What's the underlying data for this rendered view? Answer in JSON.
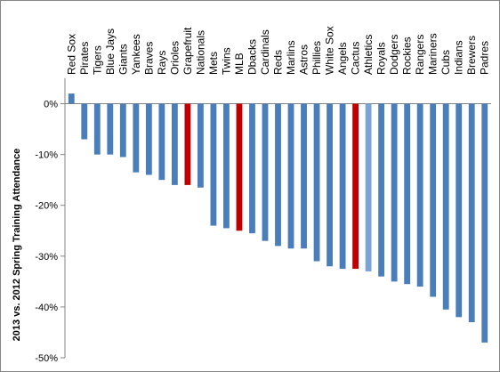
{
  "chart_data": {
    "type": "bar",
    "title": "",
    "xlabel": "",
    "ylabel": "2013 vs. 2012 Spring Training Attendance",
    "ylim": [
      -50,
      5
    ],
    "yticks": [
      0,
      -10,
      -20,
      -30,
      -40,
      -50
    ],
    "ytick_labels": [
      "0%",
      "-10%",
      "-20%",
      "-30%",
      "-40%",
      "-50%"
    ],
    "grid": false,
    "legend": "none",
    "categories": [
      "Red Sox",
      "Pirates",
      "Tigers",
      "Blue Jays",
      "Giants",
      "Yankees",
      "Braves",
      "Rays",
      "Orioles",
      "Grapefruit",
      "Nationals",
      "Mets",
      "Twins",
      "MLB",
      "Dbacks",
      "Cardinals",
      "Reds",
      "Marlins",
      "Astros",
      "Phillies",
      "White Sox",
      "Angels",
      "Cactus",
      "Athletics",
      "Royals",
      "Dodgers",
      "Rockies",
      "Rangers",
      "Mariners",
      "Cubs",
      "Indians",
      "Brewers",
      "Padres"
    ],
    "values": [
      2,
      -7,
      -10,
      -10,
      -10.5,
      -13.5,
      -14,
      -15,
      -16,
      -16,
      -16.5,
      -24,
      -24.5,
      -25,
      -25.5,
      -27,
      -28,
      -28.5,
      -28.5,
      -31,
      -32,
      -32.5,
      -32.5,
      -33,
      -34,
      -35,
      -35.5,
      -36,
      -38,
      -40.5,
      -42,
      -43,
      -47
    ],
    "bar_colors": [
      "#4a7ebb",
      "#4a7ebb",
      "#4a7ebb",
      "#4a7ebb",
      "#4a7ebb",
      "#4a7ebb",
      "#4a7ebb",
      "#4a7ebb",
      "#4a7ebb",
      "#c00000",
      "#4a7ebb",
      "#4a7ebb",
      "#4a7ebb",
      "#c00000",
      "#4a7ebb",
      "#4a7ebb",
      "#4a7ebb",
      "#4a7ebb",
      "#4a7ebb",
      "#4a7ebb",
      "#4a7ebb",
      "#4a7ebb",
      "#c00000",
      "#7aa3d6",
      "#4a7ebb",
      "#4a7ebb",
      "#4a7ebb",
      "#4a7ebb",
      "#4a7ebb",
      "#4a7ebb",
      "#4a7ebb",
      "#4a7ebb",
      "#4a7ebb"
    ]
  }
}
